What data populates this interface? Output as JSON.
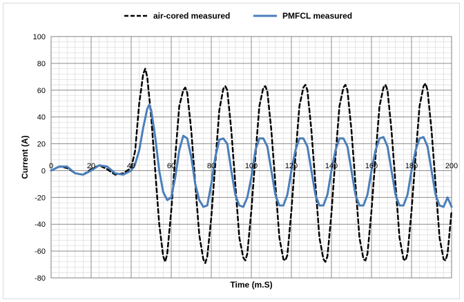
{
  "chart_data": {
    "type": "line",
    "title": "",
    "xlabel": "Time (m.S)",
    "ylabel": "Current (A)",
    "xlim": [
      0,
      200
    ],
    "ylim": [
      -80,
      100
    ],
    "x_ticks": [
      0,
      20,
      40,
      60,
      80,
      100,
      120,
      140,
      160,
      180,
      200
    ],
    "y_ticks": [
      -80,
      -60,
      -40,
      -20,
      0,
      20,
      40,
      60,
      80,
      100
    ],
    "grid": true,
    "legend_position": "top",
    "series": [
      {
        "name": "air-cored measured",
        "color": "#000000",
        "style": "dashed",
        "x": [
          0,
          4,
          8,
          12,
          16,
          20,
          24,
          28,
          32,
          36,
          40,
          42,
          44,
          46,
          47,
          48,
          50,
          52,
          54,
          56,
          57,
          58,
          60,
          62,
          64,
          66,
          67,
          68,
          70,
          72,
          74,
          76,
          77,
          78,
          80,
          82,
          84,
          86,
          87,
          88,
          90,
          92,
          94,
          96,
          97,
          98,
          100,
          102,
          104,
          106,
          107,
          108,
          110,
          112,
          114,
          116,
          117,
          118,
          120,
          122,
          124,
          126,
          127,
          128,
          130,
          132,
          134,
          136,
          137,
          138,
          140,
          142,
          144,
          146,
          147,
          148,
          150,
          152,
          154,
          156,
          157,
          158,
          160,
          162,
          164,
          166,
          167,
          168,
          170,
          172,
          174,
          176,
          177,
          178,
          180,
          182,
          184,
          186,
          187,
          188,
          190,
          192,
          194,
          196,
          197,
          198,
          200
        ],
        "y": [
          0,
          3,
          2,
          -2,
          -3,
          1,
          4,
          1,
          -3,
          -2,
          2,
          15,
          50,
          72,
          76,
          70,
          40,
          0,
          -40,
          -64,
          -68,
          -62,
          -30,
          10,
          48,
          60,
          62,
          58,
          30,
          -10,
          -48,
          -66,
          -69,
          -64,
          -35,
          5,
          45,
          61,
          63,
          60,
          30,
          -10,
          -50,
          -65,
          -67,
          -62,
          -30,
          10,
          48,
          62,
          63,
          59,
          30,
          -10,
          -50,
          -66,
          -67,
          -63,
          -30,
          10,
          48,
          62,
          64,
          60,
          30,
          -10,
          -50,
          -66,
          -68,
          -64,
          -32,
          10,
          48,
          62,
          64,
          60,
          30,
          -10,
          -50,
          -66,
          -67,
          -62,
          -30,
          10,
          48,
          62,
          64,
          60,
          30,
          -10,
          -50,
          -66,
          -67,
          -62,
          -30,
          10,
          48,
          63,
          65,
          60,
          30,
          -10,
          -50,
          -66,
          -67,
          -62,
          -30
        ]
      },
      {
        "name": "PMFCL measured",
        "color": "#4a7ebb",
        "style": "solid",
        "x": [
          0,
          4,
          8,
          12,
          16,
          20,
          24,
          28,
          32,
          36,
          40,
          42,
          44,
          46,
          48,
          49,
          50,
          52,
          54,
          56,
          58,
          60,
          62,
          64,
          66,
          68,
          70,
          72,
          74,
          76,
          78,
          80,
          82,
          84,
          86,
          88,
          90,
          92,
          94,
          96,
          98,
          100,
          102,
          104,
          106,
          108,
          110,
          112,
          114,
          116,
          118,
          120,
          122,
          124,
          126,
          128,
          130,
          132,
          134,
          136,
          138,
          140,
          142,
          144,
          146,
          148,
          150,
          152,
          154,
          156,
          158,
          160,
          162,
          164,
          166,
          168,
          170,
          172,
          174,
          176,
          178,
          180,
          182,
          184,
          186,
          188,
          190,
          192,
          194,
          196,
          198,
          200
        ],
        "y": [
          0,
          3,
          3,
          -2,
          -3,
          0,
          4,
          3,
          -2,
          -3,
          0,
          5,
          15,
          32,
          46,
          49,
          45,
          25,
          0,
          -16,
          -22,
          -20,
          -5,
          15,
          26,
          24,
          10,
          -10,
          -22,
          -27,
          -26,
          -10,
          10,
          23,
          24,
          20,
          0,
          -18,
          -26,
          -27,
          -20,
          -5,
          15,
          24,
          24,
          18,
          0,
          -18,
          -26,
          -26,
          -18,
          0,
          15,
          24,
          24,
          18,
          0,
          -18,
          -26,
          -26,
          -18,
          0,
          15,
          24,
          24,
          18,
          0,
          -18,
          -26,
          -26,
          -18,
          0,
          15,
          24,
          25,
          18,
          0,
          -18,
          -26,
          -26,
          -18,
          0,
          15,
          24,
          25,
          18,
          0,
          -18,
          -26,
          -27,
          -20,
          -27
        ]
      }
    ]
  }
}
